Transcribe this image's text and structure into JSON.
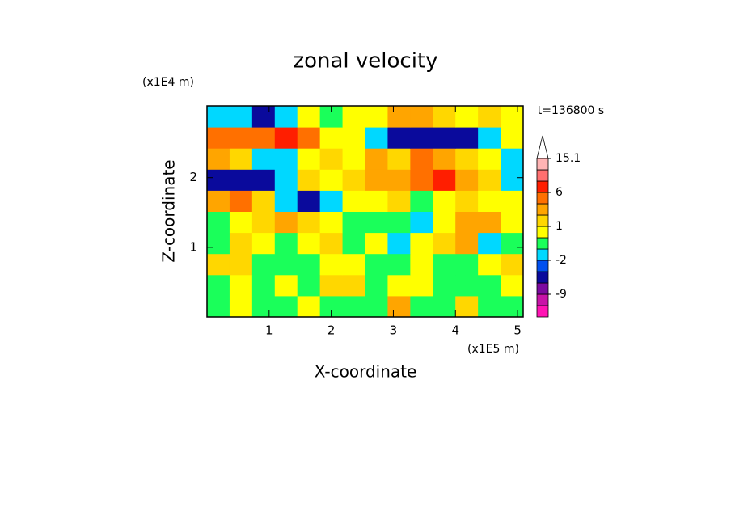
{
  "chart_data": {
    "type": "contour",
    "title": "zonal velocity",
    "time_label": "t=136800 s",
    "x_label": "X-coordinate",
    "y_label": "Z-coordinate",
    "x_scale_label": "(x1E5 m)",
    "y_scale_label": "(x1E4 m)",
    "xlim": [
      0,
      5.09
    ],
    "ylim": [
      0,
      3.03
    ],
    "xticks": [
      1,
      2,
      3,
      4,
      5
    ],
    "yticks": [
      1,
      2
    ],
    "levels": [
      -15,
      -12,
      -9,
      -6,
      -3,
      -2,
      -1,
      0,
      1,
      2,
      3,
      6,
      9,
      12,
      15.1
    ],
    "level_colors": [
      "#ff14b4",
      "#c814a8",
      "#7c0aa0",
      "#0a0a9c",
      "#0050f0",
      "#00d8ff",
      "#1aff5a",
      "#ffff00",
      "#ffd700",
      "#ffa500",
      "#ff7000",
      "#ff1e00",
      "#ff7070",
      "#ffb4b4"
    ],
    "colorbar_ticks": [
      -9,
      -2,
      1,
      6,
      15.1
    ],
    "values": [
      [
        -0.5,
        0.5,
        -0.5,
        -0.5,
        0.5,
        -0.5,
        -0.5,
        -0.5,
        2.5,
        -0.5,
        -0.5,
        1.5,
        -0.5,
        -0.5
      ],
      [
        -0.5,
        0.5,
        -0.5,
        0.5,
        -0.5,
        1.5,
        1.5,
        -0.5,
        0.5,
        0.5,
        -0.5,
        -0.5,
        -0.5,
        0.5
      ],
      [
        1.5,
        1.5,
        -0.5,
        -0.5,
        -0.5,
        0.5,
        0.5,
        -0.5,
        -0.5,
        0.5,
        -0.5,
        -0.5,
        0.5,
        1.5
      ],
      [
        -0.5,
        1.5,
        0.5,
        -0.5,
        0.5,
        1.5,
        -0.5,
        0.5,
        -1.5,
        0.5,
        1.5,
        2,
        -1.5,
        -0.5
      ],
      [
        -0.5,
        0.5,
        1.5,
        2.5,
        1.5,
        0.5,
        -0.5,
        -0.5,
        -0.5,
        -1.5,
        0.5,
        2,
        2.5,
        0.5
      ],
      [
        2,
        3,
        1.5,
        -1.5,
        -4,
        -1.5,
        0.5,
        0.5,
        1.5,
        -0.5,
        0.5,
        1.5,
        0.5,
        0.5
      ],
      [
        -5,
        -5,
        -4,
        -1.5,
        1.5,
        0.5,
        1.5,
        2,
        2.5,
        3,
        7,
        2.5,
        1.5,
        -1.5
      ],
      [
        2,
        1.5,
        -1.5,
        -2,
        0.5,
        1.5,
        0.5,
        2,
        1.5,
        3,
        2.5,
        1.5,
        0.5,
        -2
      ],
      [
        3,
        4,
        5,
        7,
        3,
        0.5,
        0.5,
        -1.5,
        -5,
        -5,
        -5,
        -4,
        -1.5,
        0.5
      ],
      [
        -1.5,
        -1.5,
        -4,
        -1.5,
        0.5,
        -0.5,
        0.5,
        0.5,
        2,
        2.5,
        1.5,
        0.5,
        1.5,
        0.5
      ]
    ]
  }
}
